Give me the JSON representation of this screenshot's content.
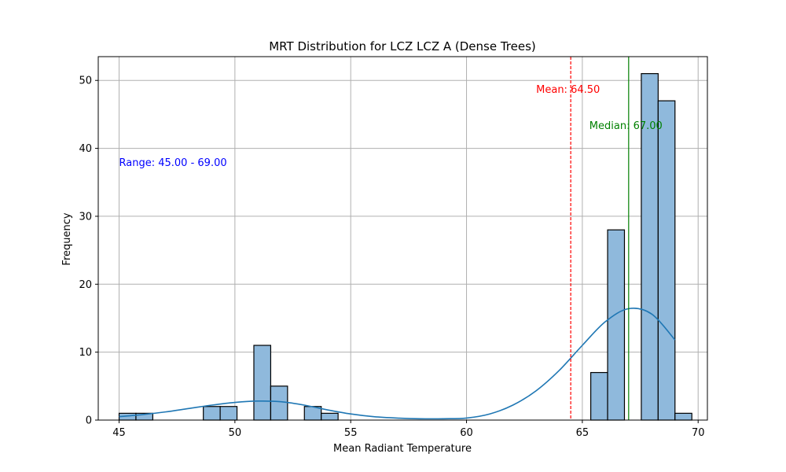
{
  "chart_data": {
    "type": "bar",
    "title": "MRT Distribution for LCZ LCZ A (Dense Trees)",
    "xlabel": "Mean Radiant Temperature",
    "ylabel": "Frequency",
    "xlim": [
      44.1,
      70.4
    ],
    "ylim": [
      0,
      53.5
    ],
    "xticks": [
      45,
      50,
      55,
      60,
      65,
      70
    ],
    "yticks": [
      0,
      10,
      20,
      30,
      40,
      50
    ],
    "grid": true,
    "histogram": {
      "bin_start": 45.0,
      "bin_width": 0.7273,
      "counts": [
        1,
        1,
        0,
        0,
        0,
        2,
        2,
        0,
        11,
        5,
        0,
        2,
        1,
        0,
        0,
        0,
        0,
        0,
        0,
        0,
        0,
        0,
        0,
        0,
        0,
        0,
        0,
        0,
        7,
        28,
        0,
        51,
        47,
        1
      ],
      "fill_color": "#8fb9dc",
      "edge_color": "#000000"
    },
    "kde": {
      "color": "#1f77b4",
      "x": [
        45,
        46,
        47,
        48,
        49,
        50,
        51,
        52,
        53,
        54,
        55,
        56,
        57,
        58,
        59,
        60,
        61,
        62,
        63,
        64,
        65,
        66,
        67,
        68,
        69
      ],
      "y": [
        0.5,
        0.8,
        1.2,
        1.7,
        2.2,
        2.6,
        2.8,
        2.7,
        2.2,
        1.5,
        0.9,
        0.5,
        0.3,
        0.2,
        0.2,
        0.3,
        0.9,
        2.2,
        4.3,
        7.3,
        11.0,
        14.5,
        16.4,
        15.6,
        11.8
      ]
    },
    "mean": {
      "value": 64.5,
      "label": "Mean: 64.50",
      "color": "#ff0000"
    },
    "median": {
      "value": 67.0,
      "label": "Median: 67.00",
      "color": "#008000"
    },
    "range_label": {
      "text": "Range: 45.00 - 69.00",
      "color": "#0000ff"
    }
  }
}
